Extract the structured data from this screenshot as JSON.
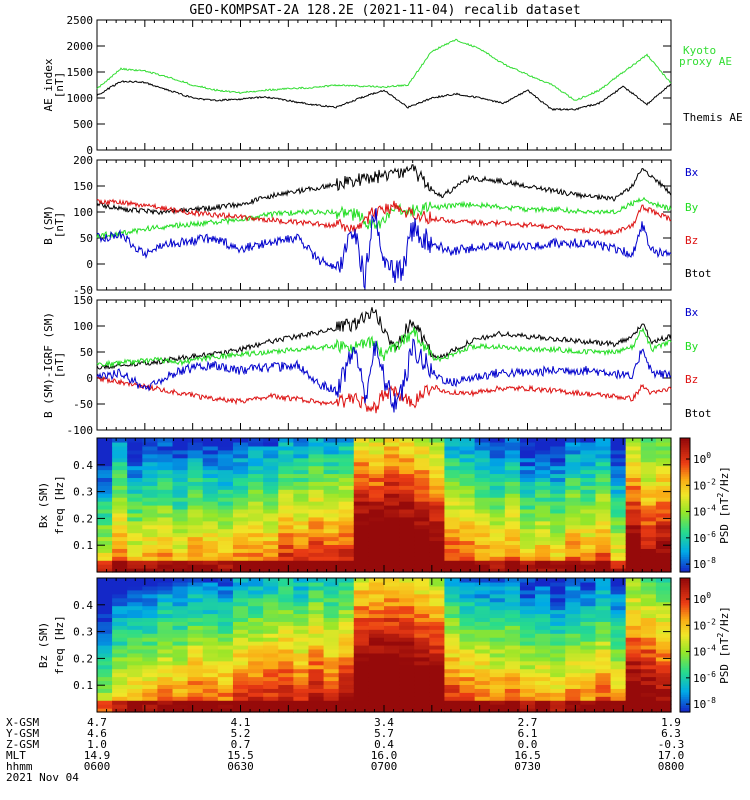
{
  "title": "GEO-KOMPSAT-2A 128.2E (2021-11-04) recalib dataset",
  "colors": {
    "black": "#000000",
    "green": "#22dd22",
    "blue": "#0000cc",
    "red": "#dd1111",
    "kyoto": "#33dd33"
  },
  "chart_data": [
    {
      "type": "line",
      "ylabel": [
        "AE index",
        "[nT]"
      ],
      "ylim": [
        0,
        2500
      ],
      "yticks": [
        0,
        500,
        1000,
        1500,
        2000,
        2500
      ],
      "xlim": [
        0,
        120
      ],
      "series": [
        {
          "name": "Kyoto proxy AE",
          "color": "#33dd33",
          "x": [
            0,
            5,
            10,
            15,
            20,
            25,
            30,
            35,
            40,
            45,
            50,
            55,
            60,
            65,
            70,
            75,
            80,
            85,
            90,
            95,
            100,
            105,
            110,
            115,
            120
          ],
          "y": [
            1180,
            1560,
            1520,
            1400,
            1250,
            1150,
            1100,
            1150,
            1180,
            1200,
            1250,
            1230,
            1210,
            1250,
            1900,
            2120,
            1950,
            1650,
            1450,
            1260,
            950,
            1150,
            1500,
            1830,
            1280
          ]
        },
        {
          "name": "Themis AE",
          "color": "#000000",
          "x": [
            0,
            5,
            10,
            15,
            20,
            25,
            30,
            35,
            40,
            45,
            50,
            55,
            60,
            65,
            70,
            75,
            80,
            85,
            90,
            95,
            100,
            105,
            110,
            115,
            120
          ],
          "y": [
            1050,
            1320,
            1300,
            1150,
            1000,
            950,
            980,
            1020,
            950,
            870,
            820,
            1000,
            1150,
            820,
            1000,
            1080,
            1000,
            900,
            1150,
            780,
            780,
            900,
            1220,
            880,
            1270
          ]
        }
      ],
      "legend": [
        "Kyoto",
        "proxy AE",
        "Themis AE"
      ]
    },
    {
      "type": "line",
      "ylabel": [
        "B (SM)",
        "[nT]"
      ],
      "ylabel_sub": "T",
      "ylim": [
        -50,
        200
      ],
      "yticks": [
        -50,
        0,
        50,
        100,
        150,
        200
      ],
      "xlim": [
        0,
        120
      ],
      "series": [
        {
          "name": "Btot",
          "color": "#000000",
          "x": [
            0,
            6,
            12,
            18,
            24,
            30,
            36,
            42,
            48,
            54,
            60,
            66,
            70,
            72,
            78,
            84,
            90,
            96,
            102,
            108,
            112,
            114,
            120
          ],
          "y": [
            115,
            105,
            100,
            102,
            108,
            115,
            130,
            140,
            150,
            160,
            170,
            180,
            145,
            130,
            165,
            160,
            150,
            140,
            130,
            125,
            150,
            185,
            135
          ]
        },
        {
          "name": "By",
          "color": "#22dd22",
          "x": [
            0,
            6,
            12,
            18,
            24,
            30,
            36,
            42,
            48,
            54,
            58,
            60,
            62,
            66,
            72,
            78,
            84,
            90,
            96,
            102,
            108,
            114,
            120
          ],
          "y": [
            55,
            60,
            70,
            75,
            80,
            85,
            95,
            100,
            100,
            95,
            70,
            85,
            100,
            105,
            110,
            115,
            110,
            105,
            105,
            100,
            100,
            125,
            105
          ]
        },
        {
          "name": "Bz",
          "color": "#dd1111",
          "x": [
            0,
            6,
            12,
            18,
            24,
            30,
            36,
            42,
            48,
            54,
            58,
            62,
            66,
            72,
            78,
            84,
            90,
            96,
            102,
            108,
            112,
            114,
            120
          ],
          "y": [
            120,
            118,
            110,
            100,
            95,
            90,
            85,
            80,
            75,
            70,
            100,
            110,
            95,
            85,
            80,
            78,
            75,
            70,
            65,
            60,
            75,
            110,
            85
          ]
        },
        {
          "name": "Bx",
          "color": "#0000cc",
          "x": [
            0,
            5,
            10,
            15,
            20,
            24,
            30,
            36,
            42,
            46,
            50,
            54,
            56,
            58,
            60,
            62,
            64,
            66,
            70,
            74,
            78,
            84,
            90,
            96,
            102,
            108,
            112,
            114,
            116,
            120
          ],
          "y": [
            50,
            55,
            20,
            40,
            45,
            50,
            30,
            40,
            50,
            10,
            -10,
            60,
            -30,
            105,
            20,
            -20,
            -10,
            70,
            40,
            25,
            30,
            35,
            35,
            40,
            40,
            30,
            20,
            75,
            25,
            15
          ]
        }
      ],
      "legend": [
        "Bx",
        "By",
        "Bz",
        "Btot"
      ]
    },
    {
      "type": "line",
      "ylabel": [
        "B (SM)-IGRF (SM)",
        "[nT]"
      ],
      "ylim": [
        -100,
        150
      ],
      "yticks": [
        -100,
        -50,
        0,
        50,
        100,
        150
      ],
      "xlim": [
        0,
        120
      ],
      "series": [
        {
          "name": "Btot",
          "color": "#000000",
          "x": [
            0,
            6,
            12,
            18,
            24,
            30,
            36,
            42,
            48,
            54,
            58,
            60,
            62,
            66,
            70,
            72,
            78,
            84,
            90,
            96,
            102,
            108,
            112,
            114,
            116,
            120
          ],
          "y": [
            20,
            25,
            30,
            40,
            45,
            55,
            70,
            80,
            90,
            105,
            130,
            90,
            60,
            110,
            45,
            40,
            70,
            85,
            80,
            75,
            70,
            65,
            80,
            105,
            70,
            80
          ]
        },
        {
          "name": "By",
          "color": "#22dd22",
          "x": [
            0,
            6,
            12,
            18,
            24,
            30,
            36,
            42,
            48,
            54,
            58,
            60,
            62,
            66,
            70,
            72,
            78,
            84,
            90,
            96,
            102,
            108,
            112,
            114,
            116,
            120
          ],
          "y": [
            25,
            30,
            35,
            30,
            40,
            45,
            50,
            55,
            60,
            60,
            70,
            40,
            55,
            90,
            40,
            35,
            60,
            60,
            55,
            55,
            50,
            50,
            60,
            95,
            55,
            70
          ]
        },
        {
          "name": "Bz",
          "color": "#dd1111",
          "x": [
            0,
            6,
            12,
            18,
            24,
            30,
            36,
            42,
            48,
            54,
            58,
            60,
            62,
            66,
            70,
            72,
            78,
            84,
            90,
            96,
            102,
            108,
            112,
            114,
            116,
            120
          ],
          "y": [
            0,
            -10,
            -20,
            -30,
            -40,
            -45,
            -35,
            -40,
            -50,
            -40,
            -60,
            -30,
            -25,
            -50,
            -15,
            -25,
            -30,
            -20,
            -20,
            -25,
            -30,
            -35,
            -40,
            -15,
            -30,
            -20
          ]
        },
        {
          "name": "Bx",
          "color": "#0000cc",
          "x": [
            0,
            5,
            10,
            15,
            20,
            24,
            30,
            36,
            42,
            46,
            50,
            54,
            56,
            58,
            60,
            62,
            64,
            66,
            70,
            74,
            78,
            84,
            90,
            96,
            102,
            108,
            112,
            114,
            116,
            120
          ],
          "y": [
            0,
            10,
            -20,
            5,
            20,
            25,
            15,
            20,
            25,
            -10,
            -25,
            60,
            -40,
            60,
            0,
            -50,
            -20,
            60,
            10,
            -10,
            0,
            10,
            10,
            15,
            15,
            10,
            0,
            60,
            10,
            5
          ]
        }
      ],
      "legend": [
        "Bx",
        "By",
        "Bz",
        "Btot"
      ]
    },
    {
      "type": "heatmap",
      "ylabel": [
        "Bx (SM)",
        "freq [Hz]"
      ],
      "ylim": [
        0,
        0.5
      ],
      "yticks": [
        0.1,
        0.2,
        0.3,
        0.4
      ],
      "xlim": [
        0,
        120
      ],
      "colorbar": {
        "label": "PSD [nT^2/Hz]",
        "range_log10": [
          -8.6,
          1.6
        ],
        "ticks_log10": [
          0,
          -2,
          -4,
          -6,
          -8
        ]
      },
      "column_activity": [
        0.35,
        0.55,
        0.4,
        0.45,
        0.48,
        0.4,
        0.5,
        0.45,
        0.42,
        0.48,
        0.52,
        0.5,
        0.6,
        0.55,
        0.62,
        0.58,
        0.62,
        0.95,
        0.92,
        0.98,
        0.94,
        0.9,
        0.85,
        0.58,
        0.55,
        0.5,
        0.45,
        0.52,
        0.4,
        0.45,
        0.4,
        0.52,
        0.48,
        0.55,
        0.38,
        0.85,
        0.72,
        0.78
      ]
    },
    {
      "type": "heatmap",
      "ylabel": [
        "Bz (SM)",
        "freq [Hz]"
      ],
      "ylim": [
        0,
        0.5
      ],
      "yticks": [
        0.1,
        0.2,
        0.3,
        0.4
      ],
      "xlim": [
        0,
        120
      ],
      "colorbar": {
        "label": "PSD [nT^2/Hz]",
        "range_log10": [
          -8.6,
          1.6
        ],
        "ticks_log10": [
          0,
          -2,
          -4,
          -6,
          -8
        ]
      },
      "column_activity": [
        0.25,
        0.4,
        0.42,
        0.45,
        0.5,
        0.48,
        0.55,
        0.52,
        0.5,
        0.58,
        0.6,
        0.62,
        0.65,
        0.6,
        0.68,
        0.62,
        0.68,
        0.95,
        0.95,
        0.98,
        0.96,
        0.92,
        0.88,
        0.6,
        0.55,
        0.52,
        0.5,
        0.55,
        0.45,
        0.48,
        0.42,
        0.5,
        0.48,
        0.55,
        0.45,
        0.82,
        0.78,
        0.72
      ]
    }
  ],
  "colorbar_ticks": [
    "10",
    "10",
    "10",
    "10",
    "10"
  ],
  "colorbar_exps": [
    "0",
    "-2",
    "-4",
    "-6",
    "-8"
  ],
  "colorbar_label": {
    "pre": "PSD [nT",
    "sup": "2",
    "post": "/Hz]"
  },
  "ephemeris": {
    "row_labels": [
      "X-GSM",
      "Y-GSM",
      "Z-GSM",
      "MLT",
      "hhmm",
      "2021 Nov 04"
    ],
    "columns": [
      {
        "x": 0,
        "values": [
          "4.7",
          "4.6",
          "1.0",
          "14.9",
          "0600"
        ]
      },
      {
        "x": 30,
        "values": [
          "4.1",
          "5.2",
          "0.7",
          "15.5",
          "0630"
        ]
      },
      {
        "x": 60,
        "values": [
          "3.4",
          "5.7",
          "0.4",
          "16.0",
          "0700"
        ]
      },
      {
        "x": 90,
        "values": [
          "2.7",
          "6.1",
          "0.0",
          "16.5",
          "0730"
        ]
      },
      {
        "x": 120,
        "values": [
          "1.9",
          "6.3",
          "-0.3",
          "17.0",
          "0800"
        ]
      }
    ]
  }
}
